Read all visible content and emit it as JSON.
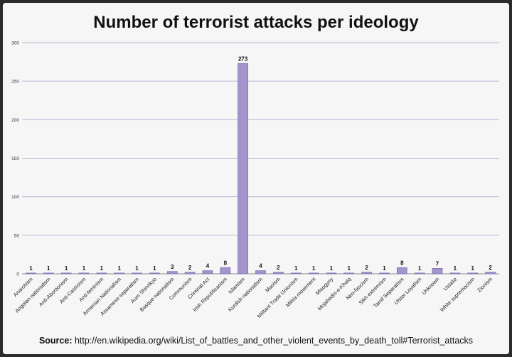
{
  "chart_data": {
    "type": "bar",
    "title": "Number of terrorist attacks per ideology",
    "xlabel": "",
    "ylabel": "",
    "ylim": [
      0,
      300
    ],
    "yticks": [
      0,
      50,
      100,
      150,
      200,
      250,
      300
    ],
    "grid": true,
    "bar_color": "#a394cc",
    "bar_edge_color": "#7d6db2",
    "gridline_color": "#b9b3d6",
    "categories": [
      "Anarchism",
      "Angolan nationalism",
      "Anti-Abortionism",
      "Anti-Castroism",
      "Anti-feminism",
      "Armenian Nationalism",
      "Assamese separatism",
      "Aum Shinrikyo",
      "Basque nationalism",
      "Communism",
      "Criminal Act",
      "Irish Republicanism",
      "Islamism",
      "Kurdish nationalism",
      "Maoism",
      "Militant Trade Unionism",
      "Militia movement",
      "Misogyny",
      "Mojahedin-e-Khalq",
      "Neo-fascism",
      "Sikh extremism",
      "Tamil Separatism",
      "Ulster Loyalism",
      "Unknown",
      "Ustaše",
      "White supremacism",
      "Zionism"
    ],
    "values": [
      1,
      1,
      1,
      1,
      1,
      1,
      1,
      1,
      3,
      2,
      4,
      8,
      273,
      4,
      2,
      1,
      1,
      1,
      1,
      2,
      1,
      8,
      1,
      7,
      1,
      1,
      2
    ]
  },
  "source": {
    "label": "Source:",
    "url": "http://en.wikipedia.org/wiki/List_of_battles_and_other_violent_events_by_death_toll#Terrorist_attacks"
  }
}
